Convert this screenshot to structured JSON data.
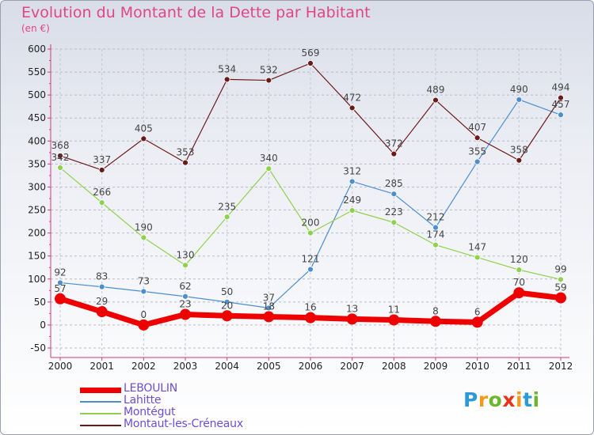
{
  "title": "Evolution du Montant de la Dette par Habitant",
  "unit": "(en €)",
  "logo": {
    "letters": [
      "P",
      "r",
      "o",
      "x",
      "i",
      "t",
      "i"
    ],
    "colors": [
      "#2b9bd8",
      "#f29a1c",
      "#6cb52d",
      "#e6331b",
      "#f29a1c",
      "#2b9bd8",
      "#6cb52d"
    ]
  },
  "chart_data": {
    "type": "line",
    "x": [
      "2000",
      "2001",
      "2002",
      "2003",
      "2004",
      "2005",
      "2006",
      "2007",
      "2008",
      "2009",
      "2010",
      "2011",
      "2012"
    ],
    "ylim": [
      -50,
      600
    ],
    "yticks": [
      -50,
      0,
      50,
      100,
      150,
      200,
      250,
      300,
      350,
      400,
      450,
      500,
      550,
      600
    ],
    "ytick_labels": [
      "-50",
      "0",
      "50",
      "100",
      "150",
      "200",
      "250",
      "300",
      "350",
      "400",
      "450",
      "500",
      "550",
      "600"
    ],
    "grid": "y-dashed",
    "legend_position": "bottom-left",
    "series": [
      {
        "name": "LEBOULIN",
        "color": "#ee0000",
        "width": 7,
        "marker": 7,
        "values": [
          57,
          29,
          0,
          23,
          20,
          18,
          16,
          13,
          11,
          8,
          6,
          70,
          59
        ],
        "labels": [
          "57",
          "29",
          "0",
          "23",
          "20",
          "18",
          "16",
          "13",
          "11",
          "8",
          "6",
          "70",
          "59"
        ]
      },
      {
        "name": "Lahitte",
        "color": "#4c8fd0",
        "width": 1.2,
        "marker": 3.5,
        "values": [
          92,
          83,
          73,
          62,
          50,
          37,
          121,
          312,
          285,
          212,
          355,
          490,
          457
        ],
        "labels": [
          "92",
          "83",
          "73",
          "62",
          "50",
          "37",
          "121",
          "312",
          "285",
          "212",
          "355",
          "490",
          "457"
        ]
      },
      {
        "name": "Montégut",
        "color": "#8fd14f",
        "width": 1.2,
        "marker": 3.5,
        "values": [
          342,
          266,
          190,
          130,
          235,
          340,
          200,
          249,
          223,
          174,
          147,
          120,
          99
        ],
        "labels": [
          "342",
          "266",
          "190",
          "130",
          "235",
          "340",
          "200",
          "249",
          "223",
          "174",
          "147",
          "120",
          "99"
        ]
      },
      {
        "name": "Montaut-les-Créneaux",
        "color": "#6b1a1a",
        "width": 1.2,
        "marker": 3.5,
        "values": [
          368,
          337,
          405,
          353,
          534,
          532,
          569,
          472,
          372,
          489,
          407,
          358,
          494
        ],
        "labels": [
          "368",
          "337",
          "405",
          "353",
          "534",
          "532",
          "569",
          "472",
          "372",
          "489",
          "407",
          "358",
          "494"
        ]
      }
    ]
  }
}
